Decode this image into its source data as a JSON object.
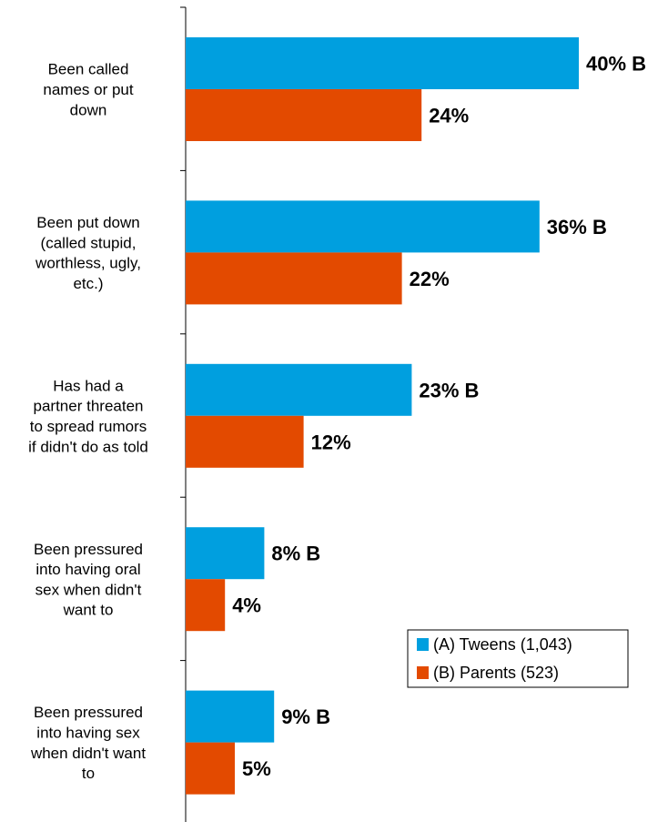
{
  "chart_data": {
    "type": "bar",
    "orientation": "horizontal",
    "categories": [
      "Been called names or put down",
      "Been put down (called stupid, worthless, ugly, etc.)",
      "Has had a partner threaten to spread rumors if didn't do as told",
      "Been pressured into having oral sex when didn't want to",
      "Been pressured into having sex when didn't want to"
    ],
    "category_lines": [
      [
        "Been called",
        "names or put",
        "down"
      ],
      [
        "Been put down",
        "(called stupid,",
        "worthless, ugly,",
        "etc.)"
      ],
      [
        "Has had a",
        "partner threaten",
        "to spread rumors",
        "if didn't do as told"
      ],
      [
        "Been pressured",
        "into having oral",
        "sex when didn't",
        "want to"
      ],
      [
        "Been pressured",
        "into having sex",
        "when didn't want",
        "to"
      ]
    ],
    "series": [
      {
        "name": "(A) Tweens (1,043)",
        "color": "#009fdf",
        "values": [
          40,
          36,
          23,
          8,
          9
        ],
        "labels": [
          "40% B",
          "36% B",
          "23% B",
          "8% B",
          "9% B"
        ]
      },
      {
        "name": "(B) Parents (523)",
        "color": "#e34a00",
        "values": [
          24,
          22,
          12,
          4,
          5
        ],
        "labels": [
          "24%",
          "22%",
          "12%",
          "4%",
          "5%"
        ]
      }
    ],
    "xlim": [
      0,
      40
    ],
    "grid": false,
    "legend_position": "bottom-right"
  }
}
